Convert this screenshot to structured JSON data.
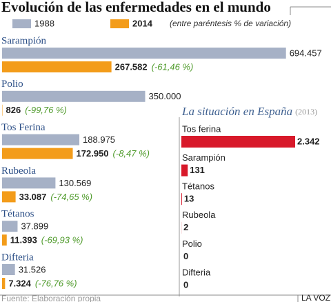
{
  "chart_data": [
    {
      "type": "hbar",
      "title": "Evolución de las enfermedades en el mundo",
      "note": "(entre paréntesis % de variación)",
      "categories": [
        "Sarampión",
        "Polio",
        "Tos Ferina",
        "Rubeola",
        "Tétanos",
        "Difteria"
      ],
      "xlim": [
        0,
        700000
      ],
      "series": [
        {
          "name": "1988",
          "color": "#a6b1c6",
          "values": [
            694457,
            350000,
            188975,
            130569,
            37899,
            31526
          ],
          "value_labels": [
            "694.457",
            "350.000",
            "188.975",
            "130.569",
            "37.899",
            "31.526"
          ]
        },
        {
          "name": "2014",
          "color": "#f39c1a",
          "values": [
            267582,
            826,
            172950,
            33087,
            11393,
            7324
          ],
          "value_labels": [
            "267.582",
            "826",
            "172.950",
            "33.087",
            "11.393",
            "7.324"
          ],
          "variation_labels": [
            "(-61,46 %)",
            "(-99,76 %)",
            "(-8,47 %)",
            "(-74,65 %)",
            "(-69,93 %)",
            "(-76,76 %)"
          ]
        }
      ]
    },
    {
      "type": "hbar",
      "title": "La situación en España",
      "subtitle": "(2013)",
      "categories": [
        "Tos ferina",
        "Sarampión",
        "Tétanos",
        "Rubeola",
        "Polio",
        "Difteria"
      ],
      "xlim": [
        0,
        2342
      ],
      "color": "#d8192a",
      "values": [
        2342,
        131,
        13,
        2,
        0,
        0
      ],
      "value_labels": [
        "2.342",
        "131",
        "13",
        "2",
        "0",
        "0"
      ]
    }
  ],
  "footer": {
    "source": "Fuente: Elaboración propia",
    "publisher": "LA VOZ"
  }
}
